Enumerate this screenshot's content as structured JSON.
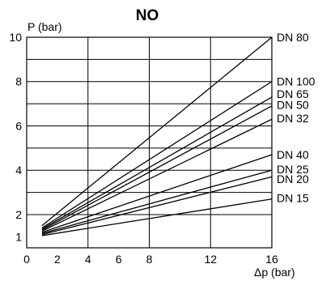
{
  "chart_data": {
    "type": "line",
    "title": "NO",
    "ylabel": "P (bar)",
    "xlabel": "Δp (bar)",
    "xlim": [
      0,
      16
    ],
    "ylim": [
      0.5,
      10
    ],
    "x_ticks": [
      0,
      2,
      4,
      6,
      8,
      12,
      16
    ],
    "y_ticks": [
      1,
      2,
      4,
      6,
      8,
      10
    ],
    "grid": true,
    "series": [
      {
        "name": "DN 80",
        "x": [
          1,
          16
        ],
        "y": [
          1.5,
          10.0
        ]
      },
      {
        "name": "DN 100",
        "x": [
          1,
          16
        ],
        "y": [
          1.4,
          8.0
        ]
      },
      {
        "name": "DN 65",
        "x": [
          1,
          16
        ],
        "y": [
          1.35,
          7.3
        ]
      },
      {
        "name": "DN 50",
        "x": [
          1,
          16
        ],
        "y": [
          1.3,
          6.9
        ]
      },
      {
        "name": "DN 32",
        "x": [
          1,
          16
        ],
        "y": [
          1.25,
          6.3
        ]
      },
      {
        "name": "DN 40",
        "x": [
          1,
          16
        ],
        "y": [
          1.2,
          4.7
        ]
      },
      {
        "name": "DN 25",
        "x": [
          1,
          16
        ],
        "y": [
          1.15,
          4.0
        ]
      },
      {
        "name": "DN 20",
        "x": [
          1,
          16
        ],
        "y": [
          1.1,
          3.7
        ]
      },
      {
        "name": "DN 15",
        "x": [
          1,
          16
        ],
        "y": [
          1.05,
          2.7
        ]
      }
    ],
    "series_label_y": {
      "DN 80": 10.0,
      "DN 100": 8.0,
      "DN 65": 7.45,
      "DN 50": 6.95,
      "DN 32": 6.35,
      "DN 40": 4.7,
      "DN 25": 4.05,
      "DN 20": 3.6,
      "DN 15": 2.75
    }
  }
}
